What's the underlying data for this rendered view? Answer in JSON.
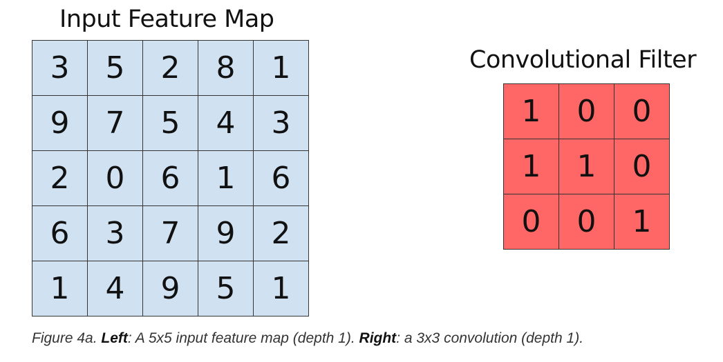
{
  "input_map": {
    "title": "Input Feature Map",
    "fill_color": "#d0e1f2",
    "rows": [
      [
        "3",
        "5",
        "2",
        "8",
        "1"
      ],
      [
        "9",
        "7",
        "5",
        "4",
        "3"
      ],
      [
        "2",
        "0",
        "6",
        "1",
        "6"
      ],
      [
        "6",
        "3",
        "7",
        "9",
        "2"
      ],
      [
        "1",
        "4",
        "9",
        "5",
        "1"
      ]
    ]
  },
  "filter": {
    "title": "Convolutional Filter",
    "fill_color": "#ff6666",
    "rows": [
      [
        "1",
        "0",
        "0"
      ],
      [
        "1",
        "1",
        "0"
      ],
      [
        "0",
        "0",
        "1"
      ]
    ]
  },
  "caption": {
    "prefix": "Figure 4a. ",
    "left_label": "Left",
    "left_text": ": A 5x5 input feature map (depth 1). ",
    "right_label": "Right",
    "right_text": ": a 3x3 convolution (depth 1)."
  }
}
